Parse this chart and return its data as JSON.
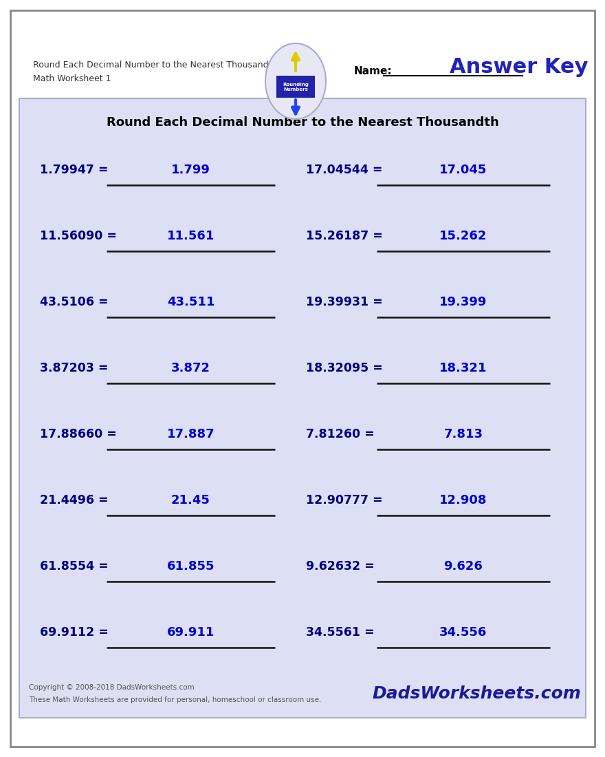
{
  "title": "Round Each Decimal Number to the Nearest Thousandth",
  "subtitle_left1": "Round Each Decimal Number to the Nearest Thousandth",
  "subtitle_left2": "Math Worksheet 1",
  "name_label": "Name:",
  "answer_key_text": "Answer Key",
  "problems": [
    {
      "question": "1.79947 =",
      "answer": "1.799"
    },
    {
      "question": "11.56090 =",
      "answer": "11.561"
    },
    {
      "question": "43.5106 =",
      "answer": "43.511"
    },
    {
      "question": "3.87203 =",
      "answer": "3.872"
    },
    {
      "question": "17.88660 =",
      "answer": "17.887"
    },
    {
      "question": "21.4496 =",
      "answer": "21.45"
    },
    {
      "question": "61.8554 =",
      "answer": "61.855"
    },
    {
      "question": "69.9112 =",
      "answer": "69.911"
    }
  ],
  "problems_right": [
    {
      "question": "17.04544 =",
      "answer": "17.045"
    },
    {
      "question": "15.26187 =",
      "answer": "15.262"
    },
    {
      "question": "19.39931 =",
      "answer": "19.399"
    },
    {
      "question": "18.32095 =",
      "answer": "18.321"
    },
    {
      "question": "7.81260 =",
      "answer": "7.813"
    },
    {
      "question": "12.90777 =",
      "answer": "12.908"
    },
    {
      "question": "9.62632 =",
      "answer": "9.626"
    },
    {
      "question": "34.5561 =",
      "answer": "34.556"
    }
  ],
  "question_color": "#000080",
  "answer_color": "#0000cc",
  "background_color": "#ffffff",
  "box_bg_color": "#dde0f5",
  "box_border_color": "#aaaacc",
  "outer_border_color": "#888888",
  "footer_text1": "Copyright © 2008-2018 DadsWorksheets.com",
  "footer_text2": "These Math Worksheets are provided for personal, homeschool or classroom use.",
  "footer_logo": "DadsWorksheets.com",
  "answer_key_color": "#2222bb",
  "name_line_color": "#000000",
  "logo_ellipse_color": "#ccccee",
  "logo_inner_color": "#3333aa"
}
